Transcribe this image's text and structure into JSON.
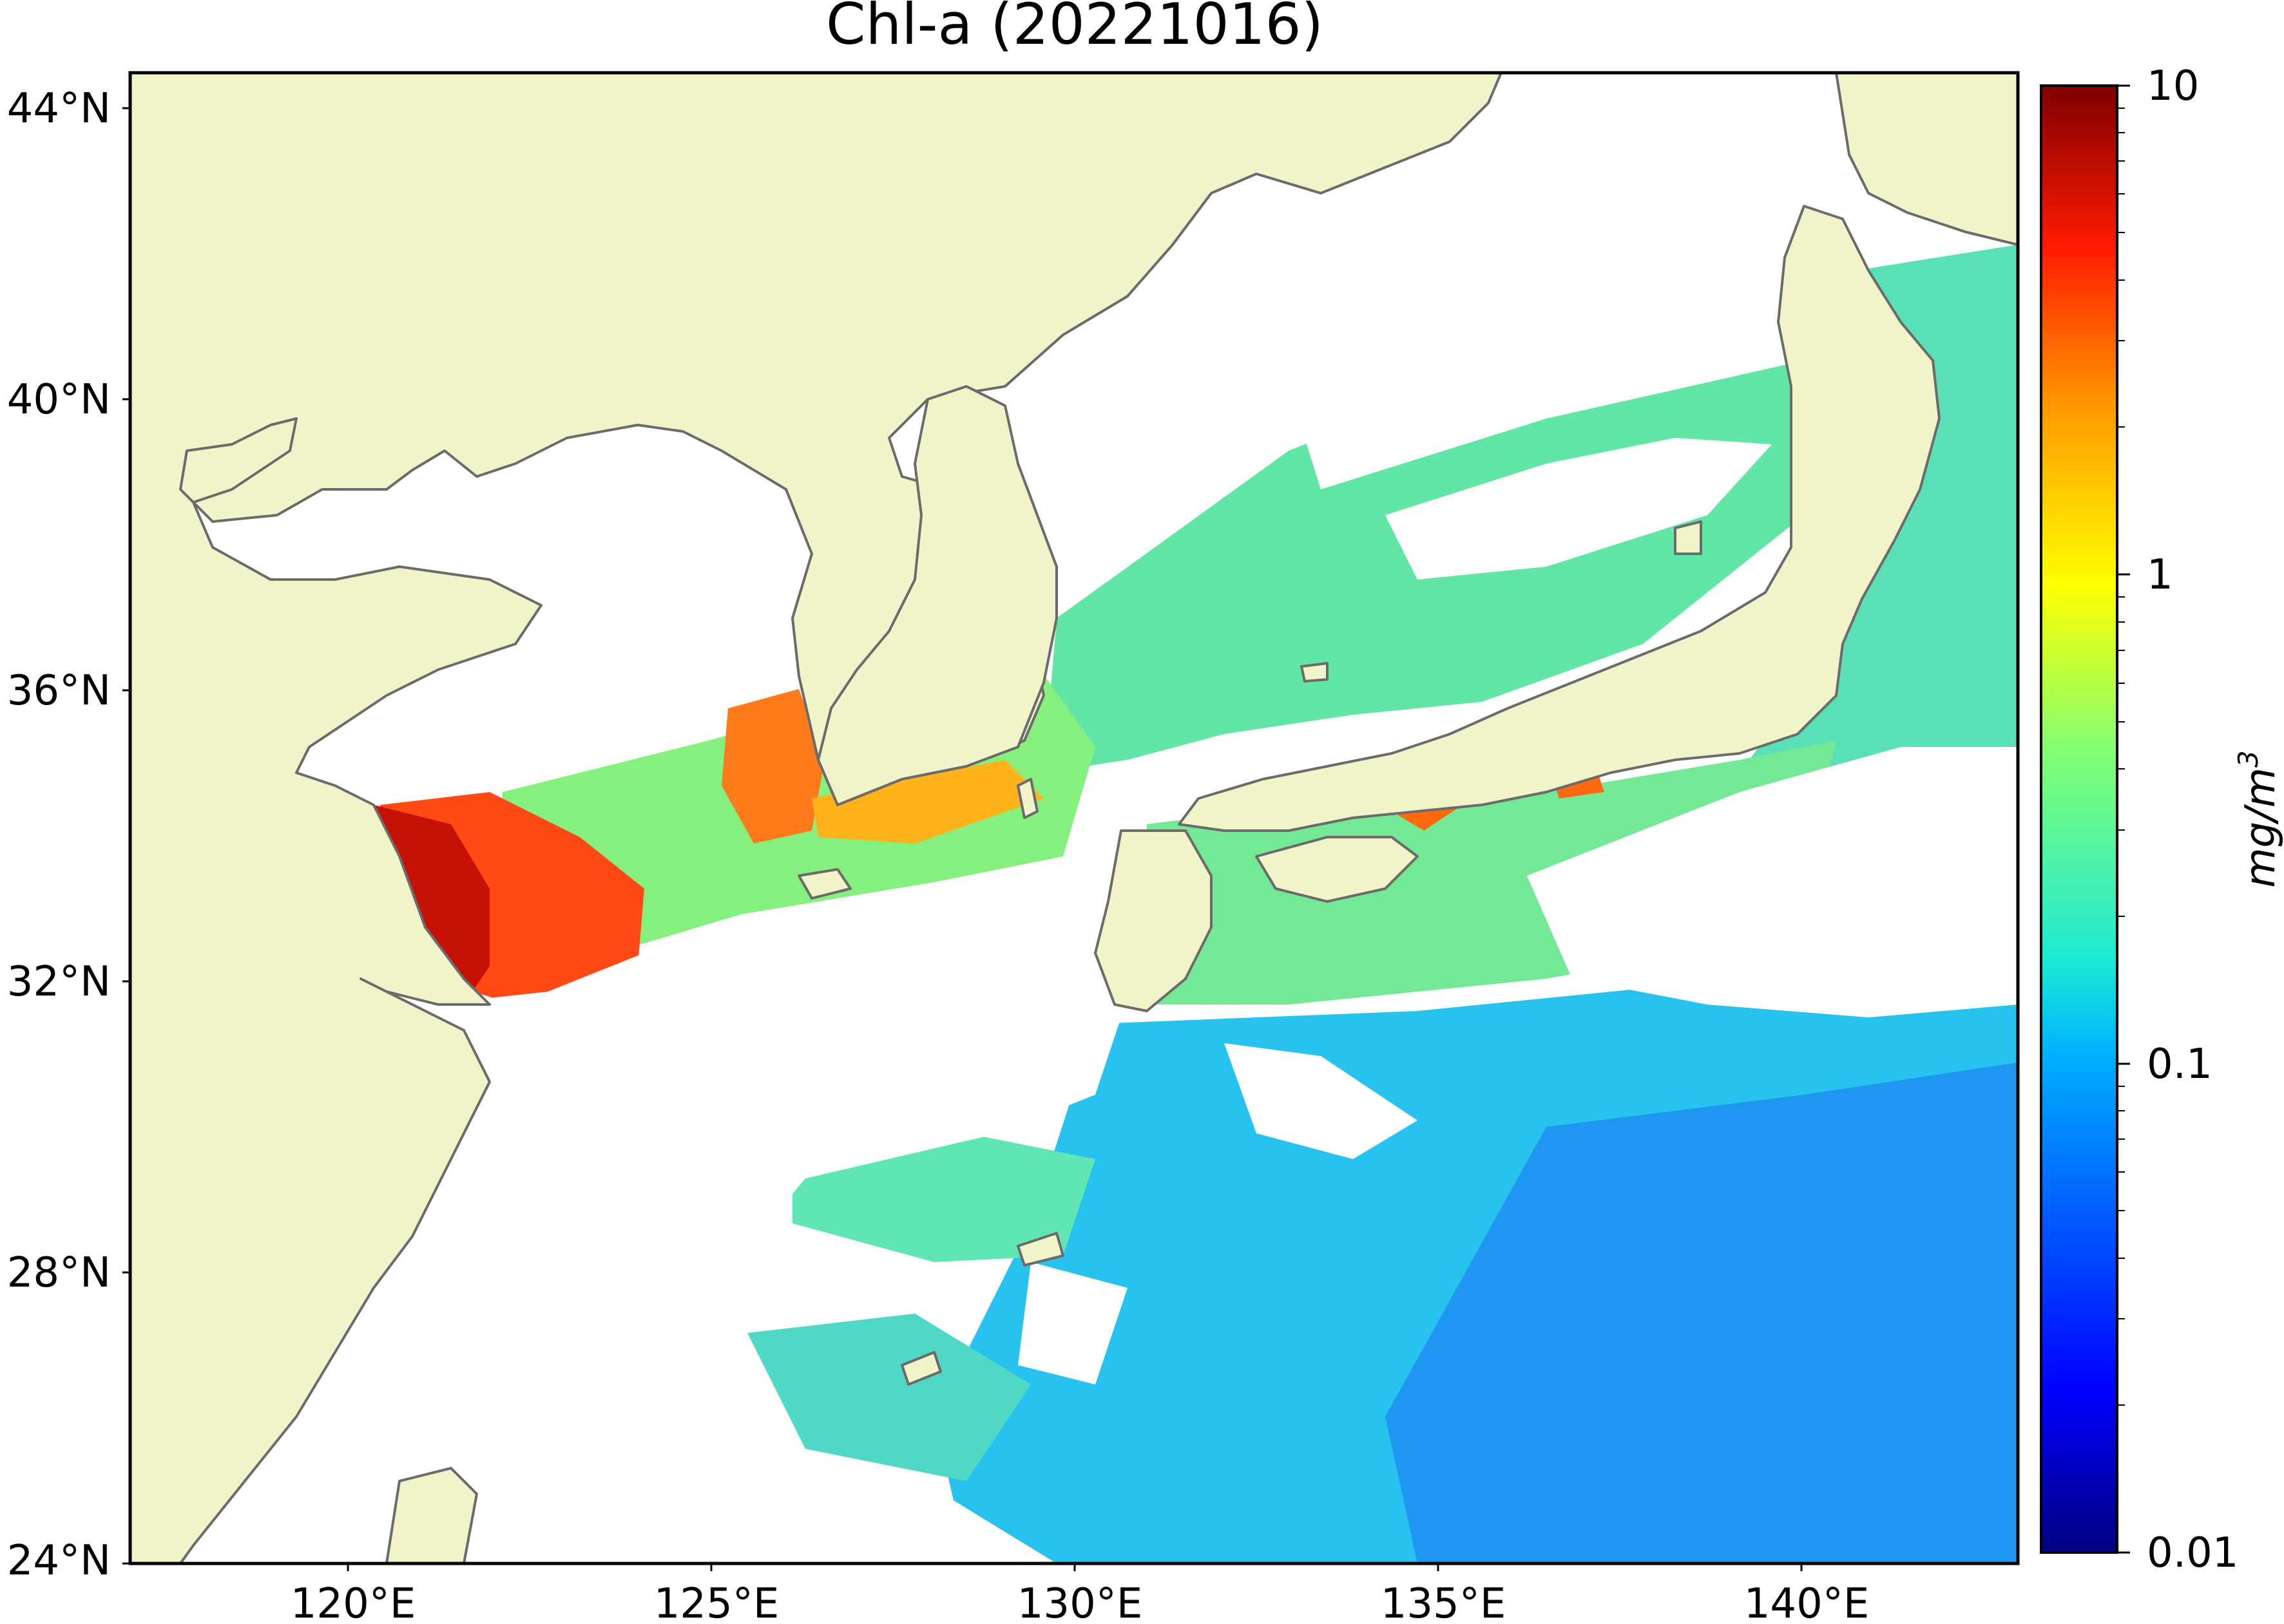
{
  "title": "Chl-a (20221016)",
  "colorbar": {
    "label": "mg/m",
    "label_superscript": "3",
    "scale": "log",
    "range": [
      0.01,
      10
    ],
    "tick_labels": [
      "10",
      "1",
      "0.1",
      "0.01"
    ],
    "colormap": "jet",
    "colors": [
      "#00007f",
      "#0000ff",
      "#007fff",
      "#00ffff",
      "#7fff7f",
      "#ffff00",
      "#ff7f00",
      "#ff0000",
      "#7f0000"
    ]
  },
  "axes": {
    "lon_range": [
      117,
      143
    ],
    "lat_range": [
      24,
      44.5
    ],
    "lon_ticks": [
      "120°E",
      "125°E",
      "130°E",
      "135°E",
      "140°E"
    ],
    "lat_ticks": [
      "44°N",
      "40°N",
      "36°N",
      "32°N",
      "28°N",
      "24°N"
    ]
  },
  "colors": {
    "land": "#f1f4c8",
    "no_data": "#ffffff",
    "coastline": "#6b6b6b",
    "frame": "#000000"
  }
}
